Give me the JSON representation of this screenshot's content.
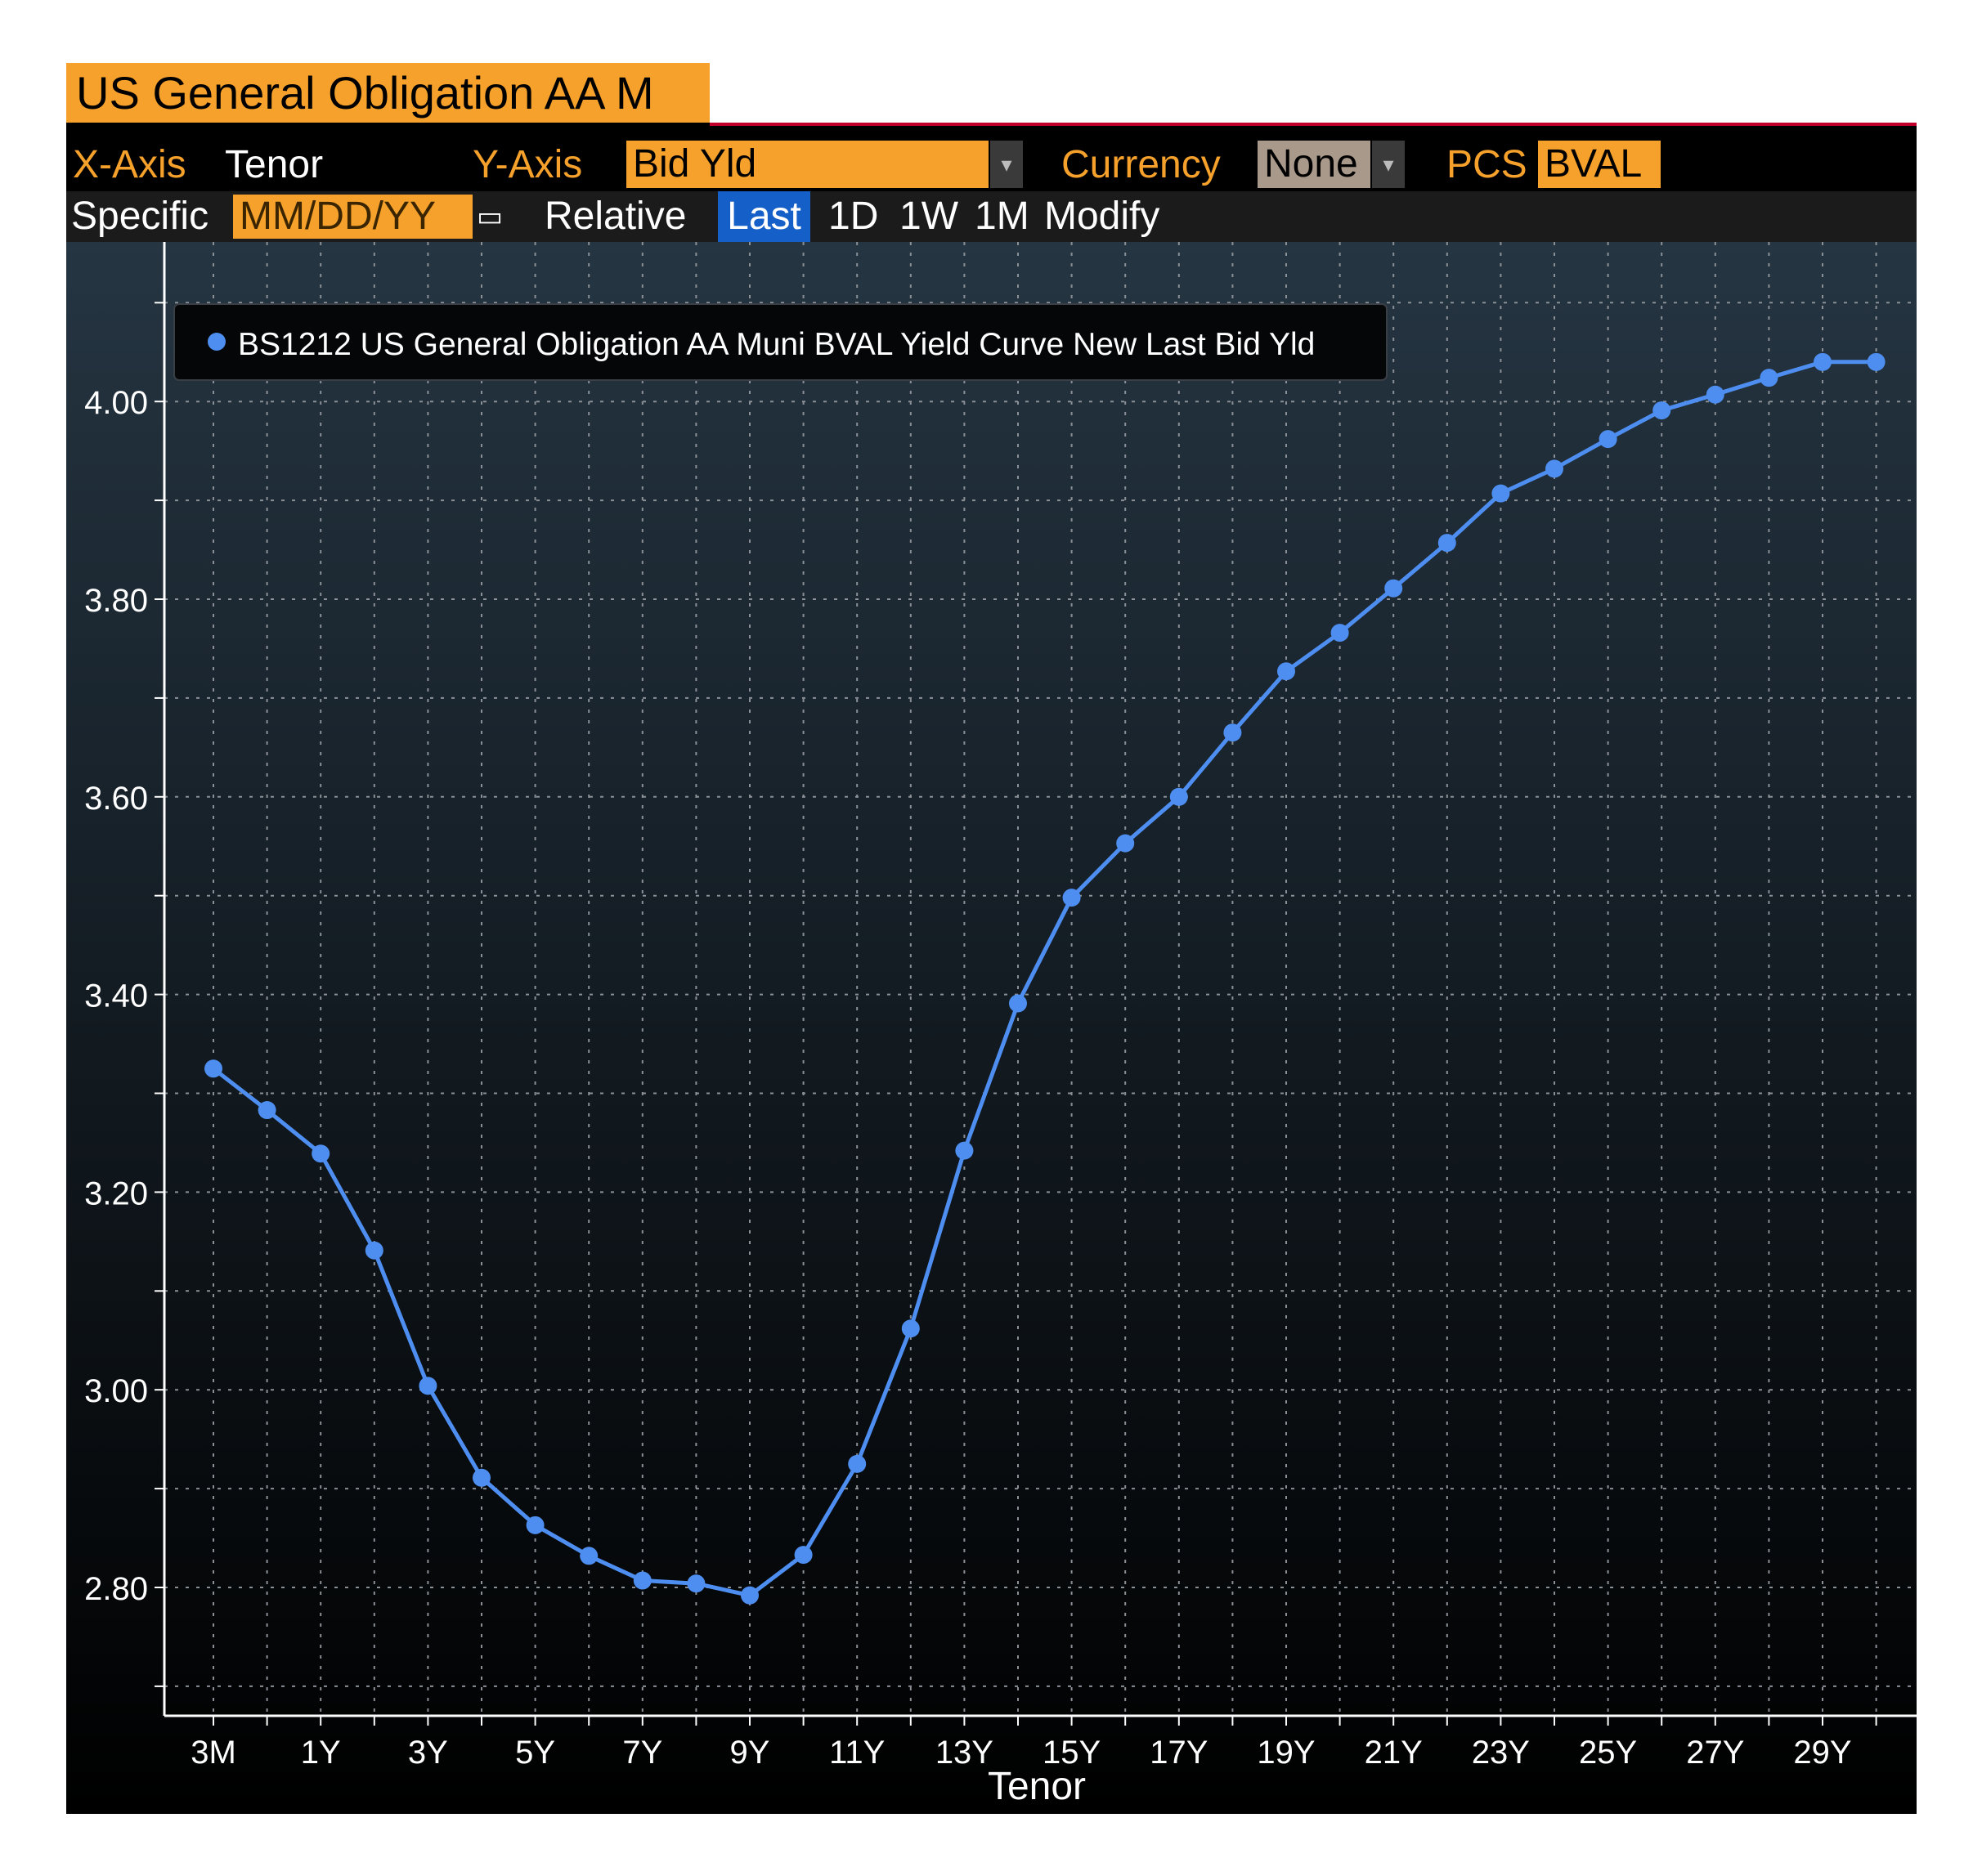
{
  "title_tab": "US General Obligation AA M",
  "controls": {
    "x_axis_label": "X-Axis",
    "x_axis_value": "Tenor",
    "y_axis_label": "Y-Axis",
    "y_axis_value": "Bid Yld",
    "currency_label": "Currency",
    "currency_value": "None",
    "pcs_label": "PCS",
    "pcs_value": "BVAL",
    "specific_label": "Specific",
    "date_placeholder": "MM/DD/YY",
    "relative_label": "Relative",
    "buttons": [
      "Last",
      "1D",
      "1W",
      "1M",
      "Modify"
    ],
    "active_button": "Last"
  },
  "colors": {
    "accent_orange": "#f6a12b",
    "series_blue": "#4d8ef0",
    "active_blue": "#1560c8",
    "background": "#000000"
  },
  "chart_data": {
    "type": "line",
    "xlabel": "Tenor",
    "ylabel": "",
    "x_tick_labels": [
      "3M",
      "1Y",
      "3Y",
      "5Y",
      "7Y",
      "9Y",
      "11Y",
      "13Y",
      "15Y",
      "17Y",
      "19Y",
      "21Y",
      "23Y",
      "25Y",
      "27Y",
      "29Y"
    ],
    "y_tick_labels": [
      "2.80",
      "3.00",
      "3.20",
      "3.40",
      "3.60",
      "3.80",
      "4.00"
    ],
    "ylim": [
      2.7,
      4.1
    ],
    "grid": true,
    "legend_position": "top-left",
    "x": [
      "3M",
      "6M",
      "1Y",
      "2Y",
      "3Y",
      "4Y",
      "5Y",
      "6Y",
      "7Y",
      "8Y",
      "9Y",
      "10Y",
      "11Y",
      "12Y",
      "13Y",
      "14Y",
      "15Y",
      "16Y",
      "17Y",
      "18Y",
      "19Y",
      "20Y",
      "21Y",
      "22Y",
      "23Y",
      "24Y",
      "25Y",
      "26Y",
      "27Y",
      "28Y",
      "29Y",
      "30Y"
    ],
    "series": [
      {
        "name": "BS1212 US General Obligation AA Muni BVAL Yield Curve New Last Bid Yld",
        "values": [
          3.325,
          3.283,
          3.239,
          3.141,
          3.004,
          2.911,
          2.863,
          2.832,
          2.807,
          2.804,
          2.792,
          2.833,
          2.925,
          3.062,
          3.242,
          3.391,
          3.498,
          3.553,
          3.6,
          3.665,
          3.727,
          3.766,
          3.811,
          3.857,
          3.907,
          3.932,
          3.962,
          3.991,
          4.007,
          4.024,
          4.04,
          4.04
        ]
      }
    ]
  }
}
